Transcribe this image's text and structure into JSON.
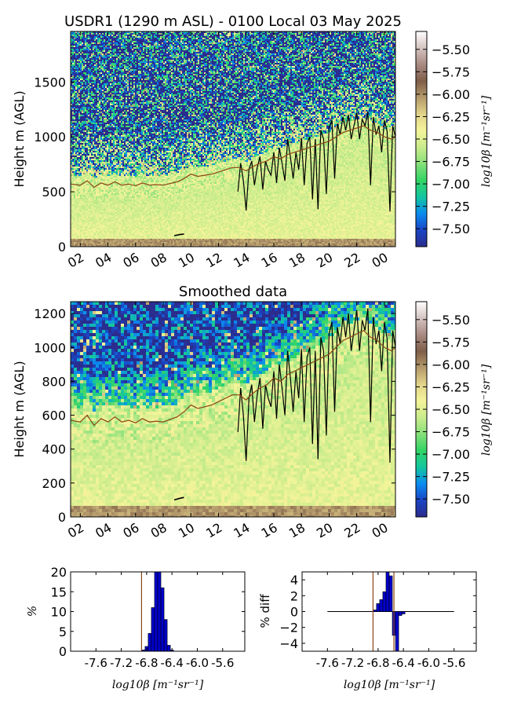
{
  "chart_data": [
    {
      "type": "heatmap",
      "title": "USDR1 (1290 m ASL) - 0100 Local 03 May 2025",
      "ylabel": "Height m (AGL)",
      "xlabel": "",
      "x_ticks": [
        "02",
        "04",
        "06",
        "08",
        "10",
        "12",
        "14",
        "16",
        "18",
        "20",
        "22",
        "00"
      ],
      "x_range": [
        1.3,
        24.8
      ],
      "y_ticks": [
        0,
        500,
        1000,
        1500
      ],
      "ylim": [
        0,
        1960
      ],
      "grid": false,
      "colorbar": {
        "label": "log10β [m⁻¹sr⁻¹]",
        "ticks": [
          "-5.50",
          "-5.75",
          "-6.00",
          "-6.25",
          "-6.50",
          "-6.75",
          "-7.00",
          "-7.25",
          "-7.50"
        ],
        "range": [
          -7.7,
          -5.3
        ],
        "colormap": [
          "#2b2c8c",
          "#1a44c4",
          "#0a8cf0",
          "#13c6a0",
          "#31d465",
          "#86e07a",
          "#c9ec8c",
          "#f4f49a",
          "#e2d48a",
          "#b59b6c",
          "#7f5e48",
          "#a98a82",
          "#d4c4c0",
          "#ffffff"
        ]
      },
      "series": [
        {
          "name": "",
          "color": "#000000",
          "x": [
            13.4,
            13.6,
            13.8,
            14.0,
            14.2,
            14.4,
            14.6,
            14.8,
            15.0,
            15.2,
            15.4,
            15.6,
            15.8,
            16.0,
            16.2,
            16.4,
            16.6,
            16.8,
            17.0,
            17.2,
            17.4,
            17.6,
            17.8,
            18.0,
            18.2,
            18.4,
            18.6,
            18.8,
            19.0,
            19.2,
            19.4,
            19.6,
            19.8,
            20.0,
            20.2,
            20.4,
            20.6,
            20.8,
            21.0,
            21.2,
            21.4,
            21.6,
            21.8,
            22.0,
            22.2,
            22.4,
            22.6,
            22.8,
            23.0,
            23.2,
            23.4,
            23.6,
            23.8,
            24.0,
            24.2,
            24.4,
            24.6,
            24.8
          ],
          "y": [
            500,
            760,
            600,
            330,
            700,
            780,
            560,
            720,
            820,
            520,
            780,
            700,
            650,
            860,
            580,
            900,
            760,
            600,
            980,
            820,
            620,
            860,
            700,
            990,
            560,
            940,
            1000,
            430,
            980,
            340,
            1060,
            980,
            480,
            1080,
            1150,
            620,
            1120,
            1020,
            1180,
            1060,
            1200,
            980,
            1100,
            1220,
            980,
            1160,
            1100,
            1230,
            560,
            1180,
            1020,
            1100,
            860,
            1150,
            1050,
            320,
            1100,
            1000
          ]
        },
        {
          "name": "",
          "color": "#8b4513",
          "x": [
            1.3,
            2.0,
            2.5,
            3.0,
            3.5,
            4.0,
            4.5,
            5.0,
            5.5,
            6.0,
            6.5,
            7.0,
            7.5,
            8.0,
            8.5,
            9.0,
            9.5,
            10.0,
            10.5,
            11.0,
            11.5,
            12.0,
            12.5,
            13.0,
            13.5,
            14.0,
            14.5,
            15.0,
            15.5,
            16.0,
            16.5,
            17.0,
            17.5,
            18.0,
            18.5,
            19.0,
            19.5,
            20.0,
            20.5,
            21.0,
            21.5,
            22.0,
            22.5,
            23.0,
            23.5,
            24.0,
            24.5,
            24.8
          ],
          "y": [
            570,
            560,
            600,
            540,
            580,
            560,
            590,
            560,
            570,
            555,
            580,
            560,
            565,
            560,
            575,
            590,
            620,
            660,
            640,
            650,
            660,
            680,
            700,
            720,
            720,
            690,
            730,
            760,
            780,
            820,
            800,
            840,
            860,
            880,
            900,
            920,
            940,
            960,
            1000,
            1040,
            1060,
            1080,
            1100,
            1060,
            1040,
            1000,
            980,
            1000
          ]
        },
        {
          "name": "",
          "color": "#000000",
          "x": [
            8.8,
            9.2,
            9.5
          ],
          "y": [
            100,
            110,
            115
          ]
        }
      ]
    },
    {
      "type": "heatmap",
      "title": "Smoothed data",
      "ylabel": "Height m (AGL)",
      "xlabel": "",
      "x_ticks": [
        "02",
        "04",
        "06",
        "08",
        "10",
        "12",
        "14",
        "16",
        "18",
        "20",
        "22",
        "00"
      ],
      "x_range": [
        1.3,
        24.8
      ],
      "y_ticks": [
        0,
        200,
        400,
        600,
        800,
        1000,
        1200
      ],
      "ylim": [
        0,
        1270
      ],
      "grid": false,
      "colorbar": {
        "label": "log10β [m⁻¹sr⁻¹]",
        "ticks": [
          "-5.50",
          "-5.75",
          "-6.00",
          "-6.25",
          "-6.50",
          "-6.75",
          "-7.00",
          "-7.25",
          "-7.50"
        ],
        "range": [
          -7.7,
          -5.3
        ]
      },
      "series": [
        {
          "name": "",
          "color": "#000000",
          "x": [
            13.4,
            13.6,
            13.8,
            14.0,
            14.2,
            14.4,
            14.6,
            14.8,
            15.0,
            15.2,
            15.4,
            15.6,
            15.8,
            16.0,
            16.2,
            16.4,
            16.6,
            16.8,
            17.0,
            17.2,
            17.4,
            17.6,
            17.8,
            18.0,
            18.2,
            18.4,
            18.6,
            18.8,
            19.0,
            19.2,
            19.4,
            19.6,
            19.8,
            20.0,
            20.2,
            20.4,
            20.6,
            20.8,
            21.0,
            21.2,
            21.4,
            21.6,
            21.8,
            22.0,
            22.2,
            22.4,
            22.6,
            22.8,
            23.0,
            23.2,
            23.4,
            23.6,
            23.8,
            24.0,
            24.2,
            24.4,
            24.6,
            24.8
          ],
          "y": [
            500,
            760,
            600,
            330,
            700,
            780,
            560,
            720,
            820,
            520,
            780,
            700,
            650,
            860,
            580,
            900,
            760,
            600,
            980,
            820,
            620,
            860,
            700,
            990,
            560,
            940,
            1000,
            430,
            980,
            340,
            1060,
            980,
            480,
            1080,
            1150,
            620,
            1120,
            1020,
            1180,
            1060,
            1200,
            980,
            1100,
            1220,
            980,
            1160,
            1100,
            1230,
            560,
            1180,
            1020,
            1100,
            860,
            1150,
            1050,
            320,
            1100,
            1000
          ]
        },
        {
          "name": "",
          "color": "#8b4513",
          "x": [
            1.3,
            2.0,
            2.5,
            3.0,
            3.5,
            4.0,
            4.5,
            5.0,
            5.5,
            6.0,
            6.5,
            7.0,
            7.5,
            8.0,
            8.5,
            9.0,
            9.5,
            10.0,
            10.5,
            11.0,
            11.5,
            12.0,
            12.5,
            13.0,
            13.5,
            14.0,
            14.5,
            15.0,
            15.5,
            16.0,
            16.5,
            17.0,
            17.5,
            18.0,
            18.5,
            19.0,
            19.5,
            20.0,
            20.5,
            21.0,
            21.5,
            22.0,
            22.5,
            23.0,
            23.5,
            24.0,
            24.5,
            24.8
          ],
          "y": [
            570,
            560,
            600,
            540,
            580,
            560,
            590,
            560,
            570,
            555,
            580,
            560,
            565,
            560,
            575,
            590,
            620,
            660,
            640,
            650,
            660,
            680,
            700,
            720,
            720,
            690,
            730,
            760,
            780,
            820,
            800,
            840,
            860,
            880,
            900,
            920,
            940,
            960,
            1000,
            1040,
            1060,
            1080,
            1100,
            1060,
            1040,
            1000,
            980,
            1000
          ]
        },
        {
          "name": "",
          "color": "#000000",
          "x": [
            8.8,
            9.2,
            9.5
          ],
          "y": [
            100,
            110,
            115
          ]
        }
      ]
    },
    {
      "type": "bar",
      "title": "",
      "xlabel": "log10β [m⁻¹sr⁻¹]",
      "ylabel": "%",
      "x_ticks": [
        "-7.6",
        "-7.2",
        "-6.8",
        "-6.4",
        "-6.0",
        "-5.6"
      ],
      "xlim": [
        -8.0,
        -5.25
      ],
      "y_ticks": [
        "0",
        "5",
        "10",
        "15",
        "20"
      ],
      "ylim": [
        0,
        20
      ],
      "bar_width": 0.05,
      "x": [
        -6.85,
        -6.8,
        -6.75,
        -6.7,
        -6.65,
        -6.6,
        -6.55,
        -6.5,
        -6.45,
        -6.4
      ],
      "values": [
        0.3,
        1.2,
        4.5,
        11.0,
        20.0,
        20.0,
        16.0,
        8.0,
        1.5,
        0.3
      ],
      "vline": -6.88,
      "bar_color": "#0000cc",
      "vline_color": "#8b4513"
    },
    {
      "type": "bar",
      "title": "",
      "xlabel": "log10β [m⁻¹sr⁻¹]",
      "ylabel": "% diff",
      "x_ticks": [
        "-7.6",
        "-7.2",
        "-6.8",
        "-6.4",
        "-6.0",
        "-5.6"
      ],
      "xlim": [
        -8.0,
        -5.25
      ],
      "y_ticks": [
        "4",
        "2",
        "0",
        "−2",
        "−4"
      ],
      "ylim": [
        -5,
        5
      ],
      "bar_width": 0.05,
      "x": [
        -6.85,
        -6.8,
        -6.75,
        -6.7,
        -6.65,
        -6.6,
        -6.55,
        -6.5,
        -6.45,
        -6.4
      ],
      "values": [
        0.2,
        1.0,
        1.5,
        2.5,
        5.0,
        4.5,
        -3.0,
        -5.0,
        -0.5,
        -0.3
      ],
      "vline": -6.88,
      "vline2": -6.55,
      "zero_line_range": [
        -7.6,
        -5.6
      ],
      "bar_color": "#0000cc",
      "vline_color": "#8b4513"
    }
  ]
}
